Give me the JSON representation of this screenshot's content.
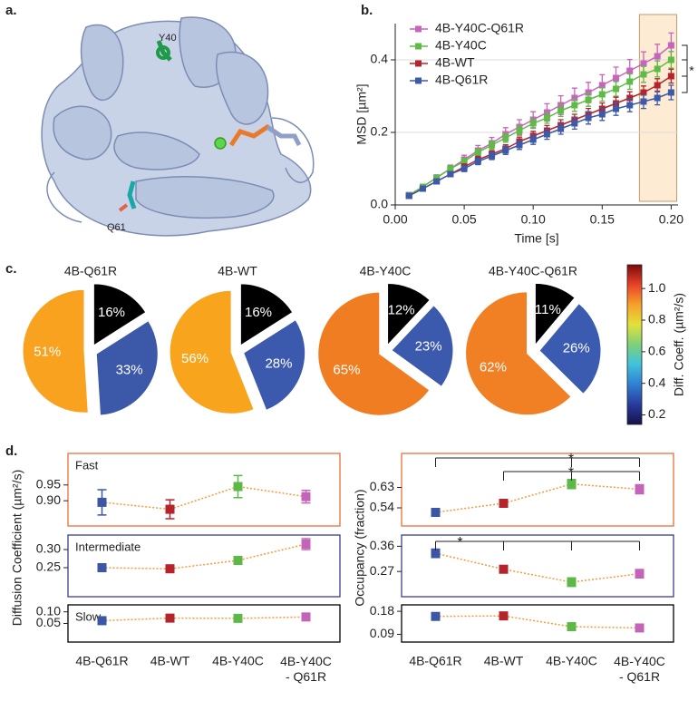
{
  "panel_labels": [
    "a.",
    "b.",
    "c.",
    "d."
  ],
  "structure": {
    "residue_labels": [
      "Y40",
      "Q61"
    ]
  },
  "chart_data": [
    {
      "type": "line",
      "xlabel": "Time [s]",
      "ylabel": "MSD [µm²]",
      "x": [
        0.01,
        0.02,
        0.03,
        0.04,
        0.05,
        0.06,
        0.07,
        0.08,
        0.09,
        0.1,
        0.11,
        0.12,
        0.13,
        0.14,
        0.15,
        0.16,
        0.17,
        0.18,
        0.19,
        0.2
      ],
      "xlim": [
        0,
        0.205
      ],
      "ylim": [
        0,
        0.5
      ],
      "xticks": [
        {
          "value": 0,
          "label": "0.00"
        },
        0.05,
        {
          "value": 0.1,
          "label": "0.10"
        },
        0.15,
        {
          "value": 0.2,
          "label": "0.20"
        }
      ],
      "yticks": [
        {
          "value": 0,
          "label": "0.0"
        },
        0.2,
        0.4
      ],
      "grid": true,
      "legend": "upper left",
      "highlight_x": [
        0.177,
        0.204
      ],
      "annotation": "*",
      "series": [
        {
          "name": "4B-Y40C-Q61R",
          "color": "#c764be",
          "values": [
            0.027,
            0.05,
            0.075,
            0.1,
            0.125,
            0.15,
            0.17,
            0.195,
            0.215,
            0.235,
            0.255,
            0.275,
            0.295,
            0.31,
            0.33,
            0.35,
            0.37,
            0.39,
            0.41,
            0.44
          ],
          "errors": [
            0.004,
            0.006,
            0.008,
            0.01,
            0.012,
            0.014,
            0.016,
            0.018,
            0.02,
            0.022,
            0.024,
            0.026,
            0.027,
            0.028,
            0.029,
            0.03,
            0.031,
            0.032,
            0.033,
            0.034
          ]
        },
        {
          "name": "4B-Y40C",
          "color": "#5ebb46",
          "values": [
            0.027,
            0.05,
            0.075,
            0.1,
            0.12,
            0.145,
            0.165,
            0.185,
            0.205,
            0.225,
            0.24,
            0.26,
            0.275,
            0.29,
            0.305,
            0.32,
            0.34,
            0.36,
            0.375,
            0.4
          ],
          "errors": [
            0.004,
            0.006,
            0.007,
            0.008,
            0.009,
            0.01,
            0.011,
            0.012,
            0.013,
            0.014,
            0.015,
            0.016,
            0.017,
            0.018,
            0.019,
            0.02,
            0.021,
            0.022,
            0.022,
            0.023
          ]
        },
        {
          "name": "4B-WT",
          "color": "#b5232b",
          "values": [
            0.025,
            0.045,
            0.065,
            0.085,
            0.105,
            0.125,
            0.14,
            0.155,
            0.175,
            0.19,
            0.205,
            0.22,
            0.235,
            0.25,
            0.265,
            0.28,
            0.295,
            0.31,
            0.33,
            0.355
          ],
          "errors": [
            0.004,
            0.005,
            0.006,
            0.007,
            0.008,
            0.009,
            0.01,
            0.011,
            0.012,
            0.013,
            0.014,
            0.015,
            0.015,
            0.016,
            0.016,
            0.017,
            0.017,
            0.018,
            0.018,
            0.019
          ]
        },
        {
          "name": "4B-Q61R",
          "color": "#3d5aa8",
          "values": [
            0.025,
            0.045,
            0.065,
            0.085,
            0.1,
            0.12,
            0.135,
            0.15,
            0.165,
            0.18,
            0.195,
            0.21,
            0.225,
            0.24,
            0.25,
            0.265,
            0.275,
            0.285,
            0.295,
            0.31
          ],
          "errors": [
            0.004,
            0.005,
            0.006,
            0.007,
            0.008,
            0.009,
            0.01,
            0.011,
            0.012,
            0.013,
            0.014,
            0.015,
            0.016,
            0.017,
            0.017,
            0.018,
            0.018,
            0.019,
            0.019,
            0.02
          ]
        }
      ]
    },
    {
      "type": "pie",
      "title": "4B-Q61R",
      "values": [
        16,
        33,
        51
      ],
      "value_labels": [
        "16%",
        "33%",
        "51%"
      ],
      "colors": [
        "#000000",
        "#3c58a8",
        "#f9a21f"
      ]
    },
    {
      "type": "pie",
      "title": "4B-WT",
      "values": [
        16,
        28,
        56
      ],
      "value_labels": [
        "16%",
        "28%",
        "56%"
      ],
      "colors": [
        "#000000",
        "#3c5aad",
        "#f8a51d"
      ]
    },
    {
      "type": "pie",
      "title": "4B-Y40C",
      "values": [
        12,
        23,
        65
      ],
      "value_labels": [
        "12%",
        "23%",
        "65%"
      ],
      "colors": [
        "#000000",
        "#3b59ad",
        "#f07d22"
      ]
    },
    {
      "type": "pie",
      "title": "4B-Y40C-Q61R",
      "values": [
        11,
        26,
        62
      ],
      "value_labels": [
        "11%",
        "26%",
        "62%"
      ],
      "colors": [
        "#000000",
        "#3b5bb0",
        "#f17f24"
      ]
    },
    {
      "type": "colorbar",
      "label": "Diff. Coeff. (µm²/s)",
      "clim": [
        0.14,
        1.15
      ],
      "colors": [
        "#14124a",
        "#2a3b9c",
        "#2f7fd0",
        "#3fc2dc",
        "#7fd07a",
        "#e3e13a",
        "#f7a12a",
        "#e8422a",
        "#7a0a0a"
      ],
      "ticks": [
        0.2,
        0.4,
        0.6,
        0.8,
        {
          "value": 1,
          "label": "1.0"
        }
      ]
    },
    {
      "type": "line",
      "ylabel": "Diffusion Coefficient (µm²/s)",
      "categories": [
        "4B-Q61R",
        "4B-WT",
        "4B-Y40C",
        "4B-Y40C\n- Q61R"
      ],
      "point_colors": [
        "#3b56a6",
        "#b5232b",
        "#5cb947",
        "#c464b8"
      ],
      "line_color": "#f39a3a",
      "subplots": [
        {
          "label": "Fast",
          "frame_color": "#e8703a",
          "ylim": [
            0.82,
            1.05
          ],
          "yticks": [
            {
              "value": 0.9,
              "label": "0.90"
            },
            0.95
          ],
          "values": [
            0.895,
            0.873,
            0.945,
            0.913
          ],
          "errors": [
            0.04,
            0.03,
            0.035,
            0.02
          ]
        },
        {
          "label": "Intermediate",
          "frame_color": "#3a3f8f",
          "ylim": [
            0.17,
            0.34
          ],
          "yticks": [
            0.25,
            {
              "value": 0.3,
              "label": "0.30"
            }
          ],
          "values": [
            0.25,
            0.247,
            0.27,
            0.315
          ],
          "errors": [
            0.005,
            0.005,
            0.006,
            0.015
          ]
        },
        {
          "label": "Slow",
          "frame_color": "#000000",
          "ylim": [
            -0.03,
            0.13
          ],
          "yticks": [
            0.05,
            {
              "value": 0.1,
              "label": "0.10"
            }
          ],
          "values": [
            0.062,
            0.073,
            0.072,
            0.078
          ],
          "errors": [
            0.003,
            0.004,
            0.004,
            0.01
          ]
        }
      ]
    },
    {
      "type": "line",
      "ylabel": "Occupancy (fraction)",
      "categories": [
        "4B-Q61R",
        "4B-WT",
        "4B-Y40C",
        "4B-Y40C\n- Q61R"
      ],
      "point_colors": [
        "#3b56a6",
        "#b5232b",
        "#5cb947",
        "#c464b8"
      ],
      "line_color": "#f39a3a",
      "subplots": [
        {
          "frame_color": "#e8703a",
          "ylim": [
            0.46,
            0.78
          ],
          "yticks": [
            0.54,
            0.63
          ],
          "values": [
            0.52,
            0.56,
            0.645,
            0.622
          ],
          "errors": [
            0.008,
            0.005,
            0.02,
            0.02
          ],
          "annotations": [
            "*",
            "*"
          ]
        },
        {
          "frame_color": "#3a3f8f",
          "ylim": [
            0.18,
            0.4
          ],
          "yticks": [
            0.27,
            0.36
          ],
          "values": [
            0.335,
            0.278,
            0.232,
            0.262
          ],
          "errors": [
            0.015,
            0.004,
            0.015,
            0.015
          ],
          "annotations": [
            "*"
          ]
        },
        {
          "frame_color": "#000000",
          "ylim": [
            0.06,
            0.205
          ],
          "yticks": [
            0.09,
            0.18
          ],
          "values": [
            0.16,
            0.162,
            0.12,
            0.115
          ],
          "errors": [
            0.004,
            0.004,
            0.004,
            0.004
          ]
        }
      ]
    }
  ]
}
